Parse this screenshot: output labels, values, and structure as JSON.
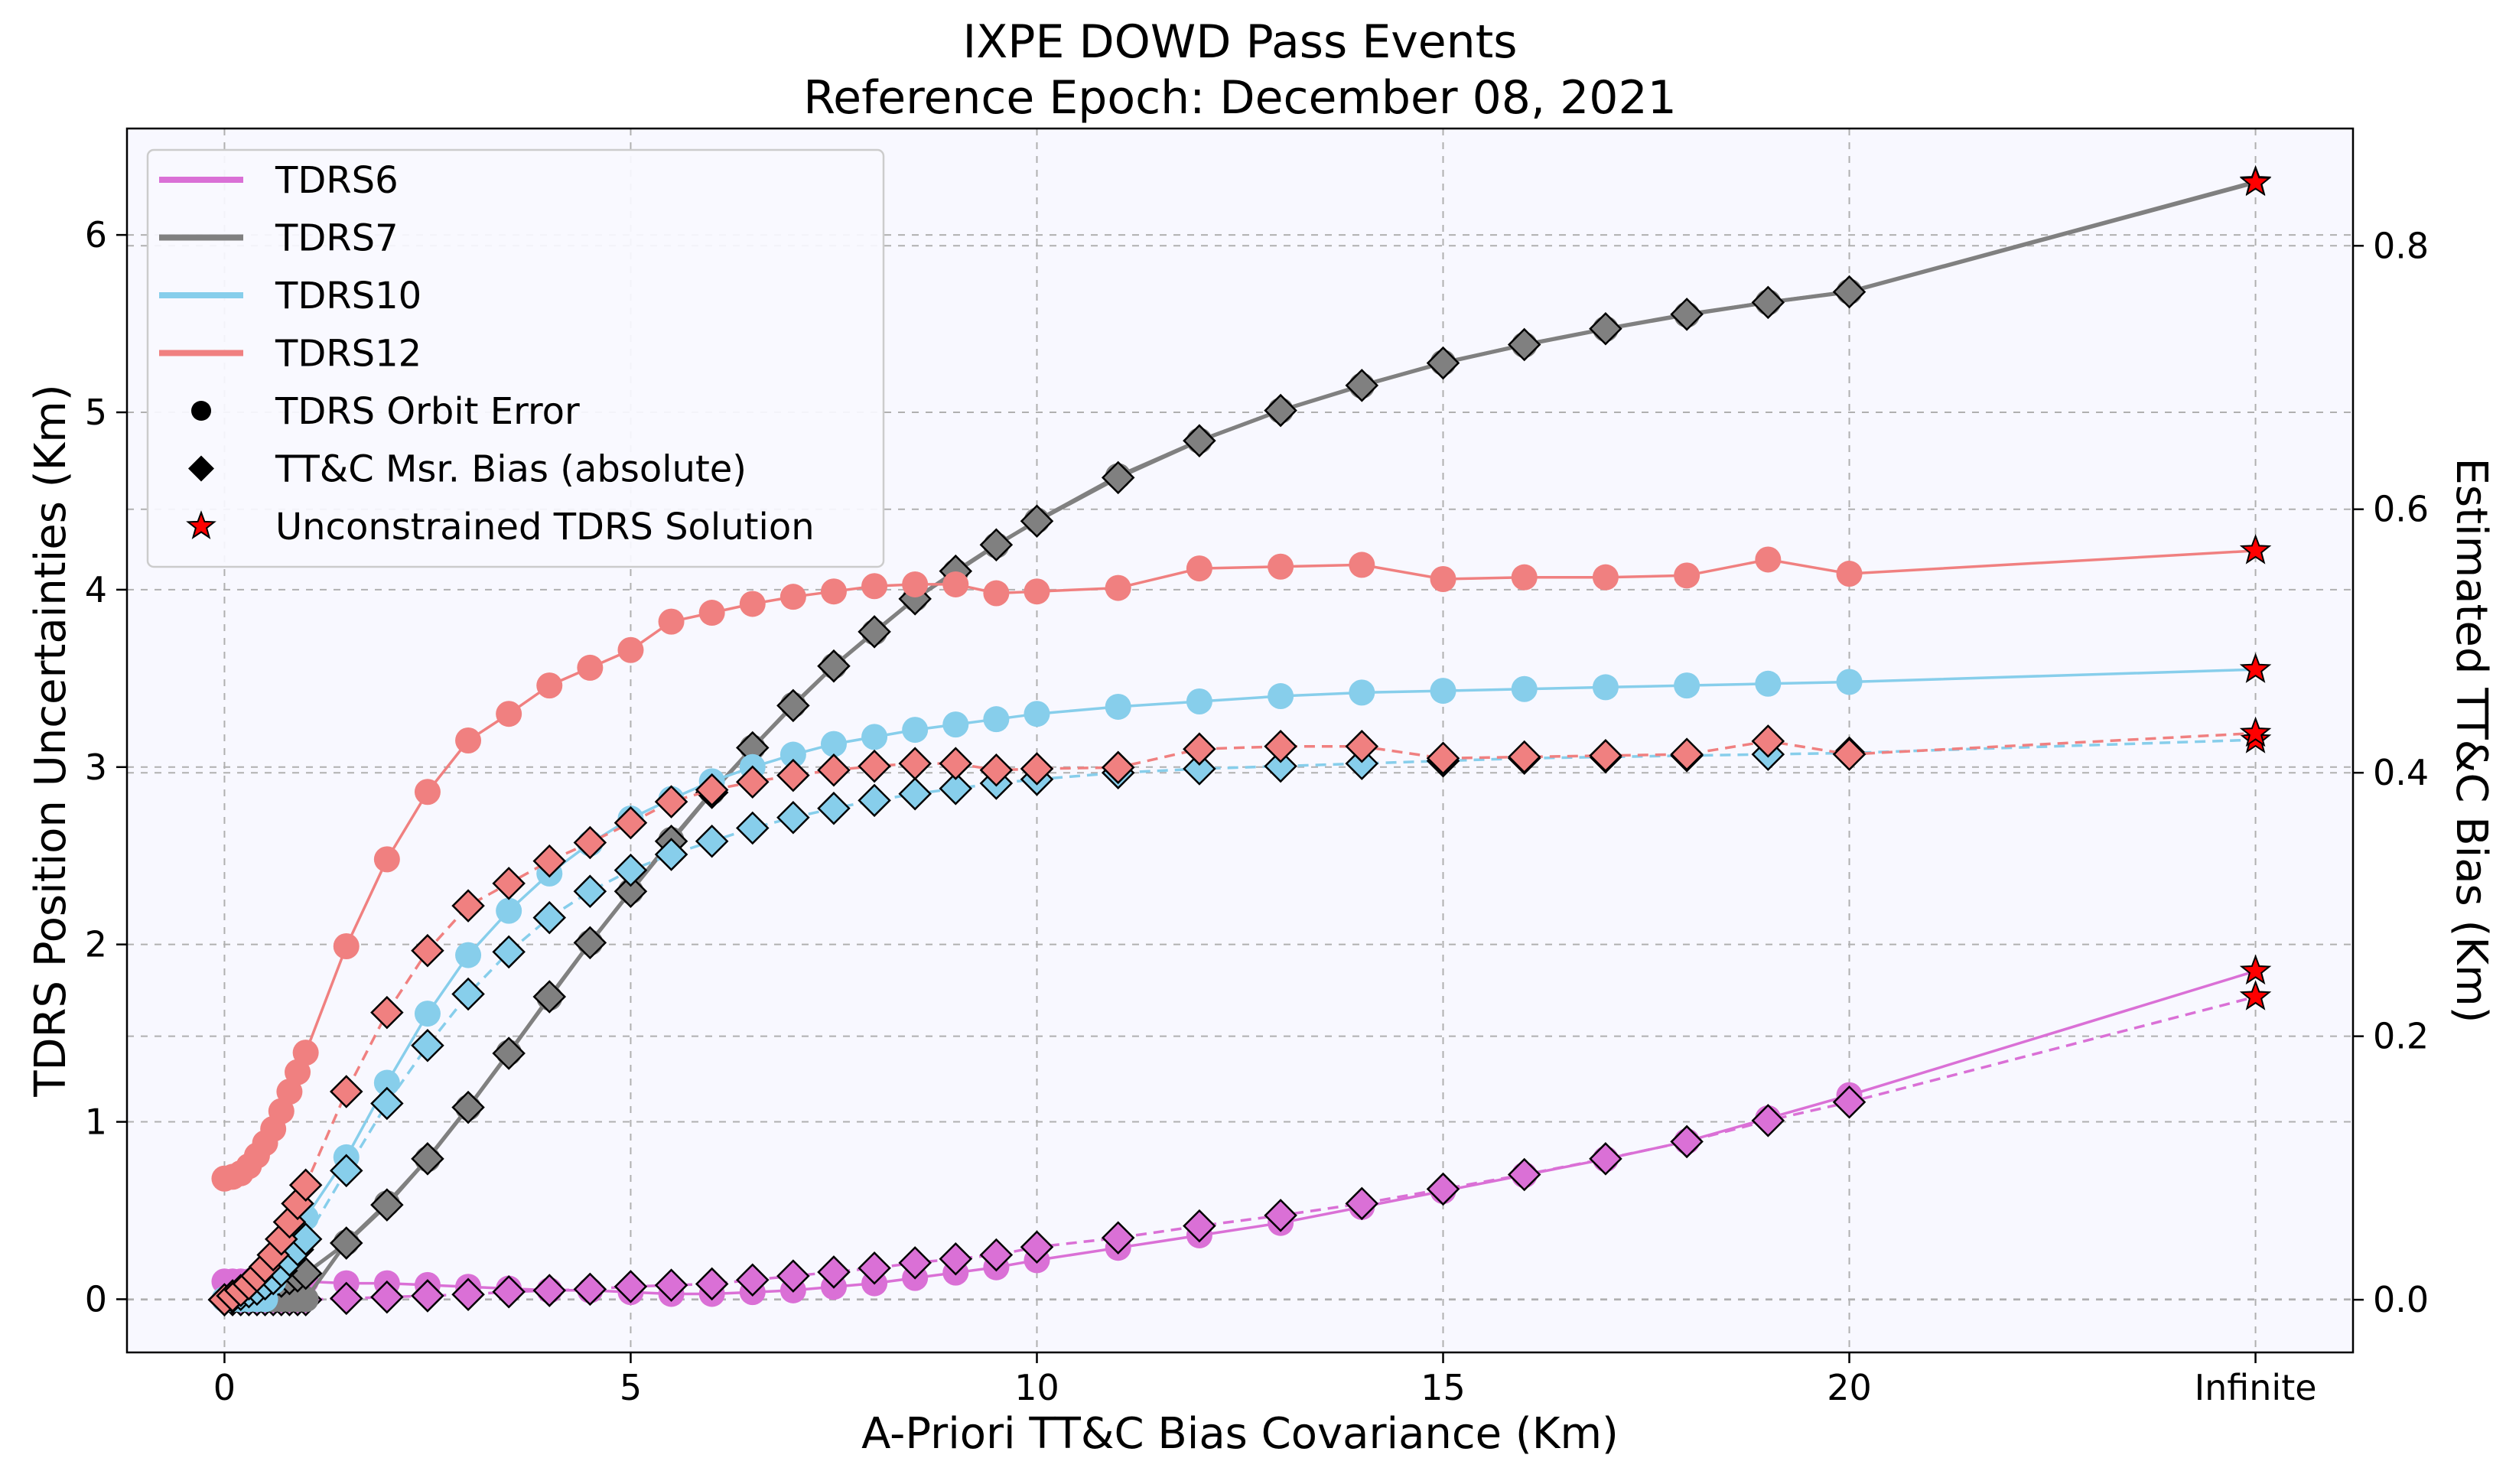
{
  "chart_data": {
    "type": "line",
    "title": "IXPE DOWD Pass Events",
    "subtitle": "Reference Epoch: December 08, 2021",
    "xlabel": "A-Priori TT&C Bias Covariance (Km)",
    "ylabel": "TDRS Position Uncertainties (Km)",
    "y2label": "Estimated TT&C Bias (Km)",
    "xlim": [
      -1.2,
      26.2
    ],
    "ylim": [
      -0.3,
      6.6
    ],
    "y2lim": [
      -0.04,
      0.889
    ],
    "x_ticks": [
      0,
      5,
      10,
      15,
      20,
      25
    ],
    "x_tick_labels": [
      "0",
      "5",
      "10",
      "15",
      "20",
      "Infinite"
    ],
    "y_ticks": [
      0,
      1,
      2,
      3,
      4,
      5,
      6
    ],
    "y_tick_labels": [
      "0",
      "1",
      "2",
      "3",
      "4",
      "5",
      "6"
    ],
    "y2_ticks": [
      0.0,
      0.2,
      0.4,
      0.6,
      0.8
    ],
    "y2_tick_labels": [
      "0.0",
      "0.2",
      "0.4",
      "0.6",
      "0.8"
    ],
    "grid": true,
    "legend_position": "top-left",
    "legend": [
      {
        "label": "TDRS6",
        "kind": "line",
        "color": "#DA70D6"
      },
      {
        "label": "TDRS7",
        "kind": "line",
        "color": "#808080"
      },
      {
        "label": "TDRS10",
        "kind": "line",
        "color": "#87CEEB"
      },
      {
        "label": "TDRS12",
        "kind": "line",
        "color": "#F08080"
      },
      {
        "label": "TDRS Orbit Error",
        "kind": "circle",
        "color": "#000000"
      },
      {
        "label": "TT&C Msr. Bias (absolute)",
        "kind": "diamond",
        "color": "#000000"
      },
      {
        "label": "Unconstrained TDRS Solution",
        "kind": "star",
        "color": "#FF0000"
      }
    ],
    "x": [
      0,
      0.1,
      0.2,
      0.3,
      0.4,
      0.5,
      0.6,
      0.7,
      0.8,
      0.9,
      1.0,
      1.5,
      2,
      2.5,
      3,
      3.5,
      4,
      4.5,
      5,
      5.5,
      6,
      6.5,
      7,
      7.5,
      8,
      8.5,
      9,
      9.5,
      10,
      11,
      12,
      13,
      14,
      15,
      16,
      17,
      18,
      19,
      20
    ],
    "x_unconstrained": 25,
    "series": [
      {
        "name": "TDRS6",
        "color": "#DA70D6",
        "orbit_error": [
          0.1,
          0.1,
          0.1,
          0.1,
          0.1,
          0.1,
          0.1,
          0.1,
          0.1,
          0.1,
          0.1,
          0.09,
          0.09,
          0.08,
          0.07,
          0.06,
          0.05,
          0.05,
          0.04,
          0.03,
          0.03,
          0.04,
          0.05,
          0.07,
          0.09,
          0.12,
          0.15,
          0.18,
          0.22,
          0.29,
          0.36,
          0.43,
          0.52,
          0.61,
          0.7,
          0.79,
          0.89,
          1.02,
          1.15
        ],
        "orbit_error_unconstrained": 1.85,
        "bias": [
          0.0,
          0.0,
          0.0,
          0.0,
          0.0,
          0.0,
          0.0,
          0.0,
          0.0,
          0.0,
          0.0,
          0.001,
          0.002,
          0.003,
          0.004,
          0.006,
          0.007,
          0.008,
          0.01,
          0.011,
          0.012,
          0.015,
          0.018,
          0.021,
          0.024,
          0.028,
          0.031,
          0.034,
          0.04,
          0.047,
          0.056,
          0.064,
          0.073,
          0.084,
          0.095,
          0.107,
          0.12,
          0.136,
          0.15
        ],
        "bias_unconstrained": 0.23
      },
      {
        "name": "TDRS7",
        "color": "#808080",
        "orbit_error": [
          0.0,
          0.0,
          0.0,
          0.0,
          0.0,
          0.0,
          0.0,
          0.0,
          0.0,
          0.0,
          0.0,
          0.32,
          0.54,
          0.79,
          1.08,
          1.39,
          1.7,
          2.01,
          2.3,
          2.59,
          2.86,
          3.11,
          3.35,
          3.57,
          3.76,
          3.95,
          4.1,
          4.25,
          4.39,
          4.64,
          4.84,
          5.01,
          5.15,
          5.28,
          5.38,
          5.47,
          5.55,
          5.62,
          5.68
        ],
        "orbit_error_unconstrained": 6.3,
        "bias": [
          0.0,
          0.002,
          0.004,
          0.006,
          0.008,
          0.01,
          0.012,
          0.014,
          0.016,
          0.018,
          0.02,
          0.043,
          0.072,
          0.107,
          0.146,
          0.187,
          0.23,
          0.271,
          0.31,
          0.348,
          0.385,
          0.419,
          0.451,
          0.481,
          0.507,
          0.532,
          0.553,
          0.573,
          0.591,
          0.624,
          0.652,
          0.675,
          0.694,
          0.711,
          0.725,
          0.737,
          0.748,
          0.757,
          0.765
        ],
        "bias_unconstrained": 0.848
      },
      {
        "name": "TDRS10",
        "color": "#87CEEB",
        "orbit_error": [
          0.0,
          0.0,
          0.0,
          0.0,
          0.0,
          0.0,
          0.1,
          0.2,
          0.3,
          0.38,
          0.46,
          0.8,
          1.22,
          1.61,
          1.94,
          2.19,
          2.4,
          2.57,
          2.71,
          2.82,
          2.92,
          3.0,
          3.07,
          3.13,
          3.17,
          3.21,
          3.24,
          3.27,
          3.3,
          3.34,
          3.37,
          3.4,
          3.42,
          3.43,
          3.44,
          3.45,
          3.46,
          3.47,
          3.48
        ],
        "orbit_error_unconstrained": 3.55,
        "bias": [
          0.0,
          0.002,
          0.004,
          0.006,
          0.008,
          0.012,
          0.016,
          0.022,
          0.03,
          0.038,
          0.046,
          0.098,
          0.149,
          0.193,
          0.232,
          0.264,
          0.29,
          0.31,
          0.326,
          0.338,
          0.348,
          0.358,
          0.366,
          0.373,
          0.379,
          0.384,
          0.388,
          0.392,
          0.395,
          0.4,
          0.403,
          0.405,
          0.407,
          0.409,
          0.411,
          0.412,
          0.413,
          0.414,
          0.415
        ],
        "bias_unconstrained": 0.425
      },
      {
        "name": "TDRS12",
        "color": "#F08080",
        "orbit_error": [
          0.68,
          0.69,
          0.71,
          0.75,
          0.81,
          0.88,
          0.96,
          1.06,
          1.17,
          1.28,
          1.39,
          1.99,
          2.48,
          2.86,
          3.15,
          3.3,
          3.46,
          3.56,
          3.66,
          3.82,
          3.87,
          3.92,
          3.96,
          3.99,
          4.02,
          4.03,
          4.03,
          3.98,
          3.99,
          4.01,
          4.12,
          4.13,
          4.14,
          4.06,
          4.07,
          4.07,
          4.08,
          4.17,
          4.09
        ],
        "orbit_error_unconstrained": 4.22,
        "bias": [
          0.0,
          0.003,
          0.007,
          0.012,
          0.018,
          0.025,
          0.034,
          0.046,
          0.059,
          0.073,
          0.087,
          0.158,
          0.218,
          0.265,
          0.299,
          0.316,
          0.333,
          0.347,
          0.362,
          0.378,
          0.387,
          0.393,
          0.398,
          0.402,
          0.405,
          0.407,
          0.407,
          0.402,
          0.403,
          0.404,
          0.418,
          0.42,
          0.42,
          0.411,
          0.412,
          0.413,
          0.414,
          0.424,
          0.414
        ],
        "bias_unconstrained": 0.43
      }
    ]
  }
}
